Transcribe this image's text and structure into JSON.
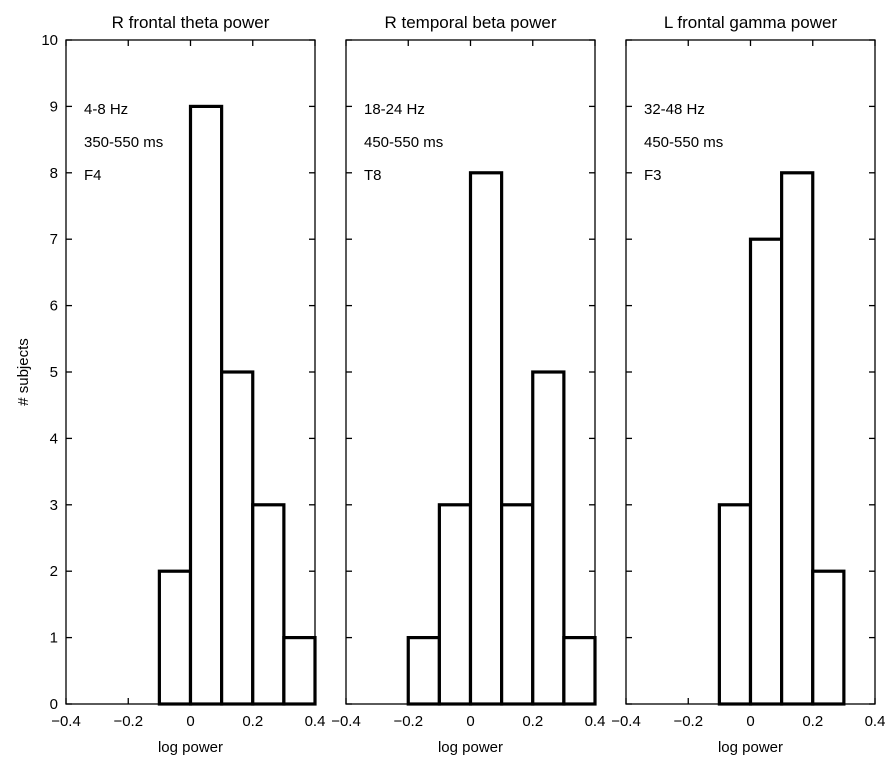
{
  "figure": {
    "ylabel": "# subjects"
  },
  "chart_data": [
    {
      "type": "bar",
      "title": "R frontal theta power",
      "xlabel": "log power",
      "ylabel": "# subjects",
      "xlim": [
        -0.4,
        0.4
      ],
      "ylim": [
        0,
        10
      ],
      "xticks": [
        -0.4,
        -0.2,
        0,
        0.2,
        0.4
      ],
      "xtick_labels": [
        "−0.4",
        "−0.2",
        "0",
        "0.2",
        "0.4"
      ],
      "yticks": [
        0,
        1,
        2,
        3,
        4,
        5,
        6,
        7,
        8,
        9,
        10
      ],
      "bin_edges": [
        -0.1,
        0.0,
        0.1,
        0.2,
        0.3,
        0.4
      ],
      "values": [
        2,
        9,
        5,
        3,
        1
      ],
      "annotations": [
        "4-8 Hz",
        "350-550 ms",
        "F4"
      ]
    },
    {
      "type": "bar",
      "title": "R temporal beta power",
      "xlabel": "log power",
      "xlim": [
        -0.4,
        0.4
      ],
      "ylim": [
        0,
        10
      ],
      "xticks": [
        -0.4,
        -0.2,
        0,
        0.2,
        0.4
      ],
      "xtick_labels": [
        "−0.4",
        "−0.2",
        "0",
        "0.2",
        "0.4"
      ],
      "bin_edges": [
        -0.2,
        -0.1,
        0.0,
        0.1,
        0.2,
        0.3,
        0.4
      ],
      "values": [
        1,
        3,
        8,
        3,
        5,
        1
      ],
      "annotations": [
        "18-24 Hz",
        "450-550 ms",
        "T8"
      ]
    },
    {
      "type": "bar",
      "title": "L frontal gamma power",
      "xlabel": "log power",
      "xlim": [
        -0.4,
        0.4
      ],
      "ylim": [
        0,
        10
      ],
      "xticks": [
        -0.4,
        -0.2,
        0,
        0.2,
        0.4
      ],
      "xtick_labels": [
        "−0.4",
        "−0.2",
        "0",
        "0.2",
        "0.4"
      ],
      "bin_edges": [
        -0.1,
        0.0,
        0.1,
        0.2,
        0.3
      ],
      "values": [
        3,
        7,
        8,
        2
      ],
      "annotations": [
        "32-48 Hz",
        "450-550 ms",
        "F3"
      ]
    }
  ]
}
